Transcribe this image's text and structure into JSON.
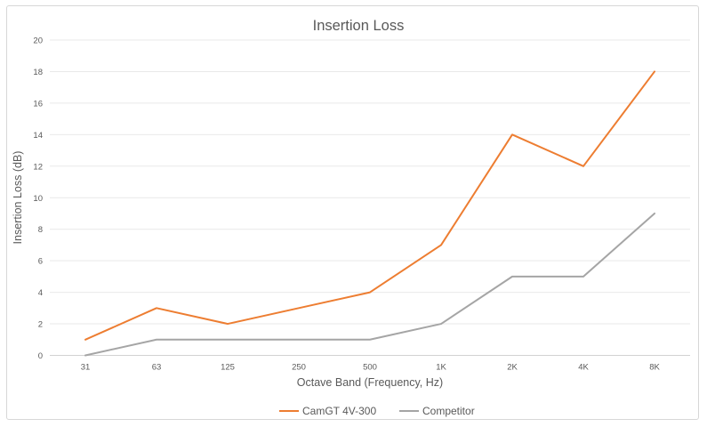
{
  "chart_data": {
    "type": "line",
    "title": "Insertion Loss",
    "xlabel": "Octave Band (Frequency, Hz)",
    "ylabel": "Insertion Loss (dB)",
    "categories": [
      "31",
      "63",
      "125",
      "250",
      "500",
      "1K",
      "2K",
      "4K",
      "8K"
    ],
    "series": [
      {
        "name": "CamGT 4V-300",
        "color": "#ED7D31",
        "values": [
          1,
          3,
          2,
          3,
          4,
          7,
          14,
          12,
          18
        ]
      },
      {
        "name": "Competitor",
        "color": "#A5A5A5",
        "values": [
          0,
          1,
          1,
          1,
          1,
          2,
          5,
          5,
          9
        ]
      }
    ],
    "ylim": [
      0,
      20
    ],
    "yticks": [
      0,
      2,
      4,
      6,
      8,
      10,
      12,
      14,
      16,
      18,
      20
    ],
    "grid": true,
    "legend_position": "bottom"
  },
  "colors": {
    "accent_orange": "#ED7D31",
    "accent_gray": "#A5A5A5",
    "text_gray": "#595959",
    "gridline": "#e9e9e9",
    "axis_line": "#d2d2d2",
    "frame_border": "#d7d7d7",
    "background": "#ffffff"
  }
}
